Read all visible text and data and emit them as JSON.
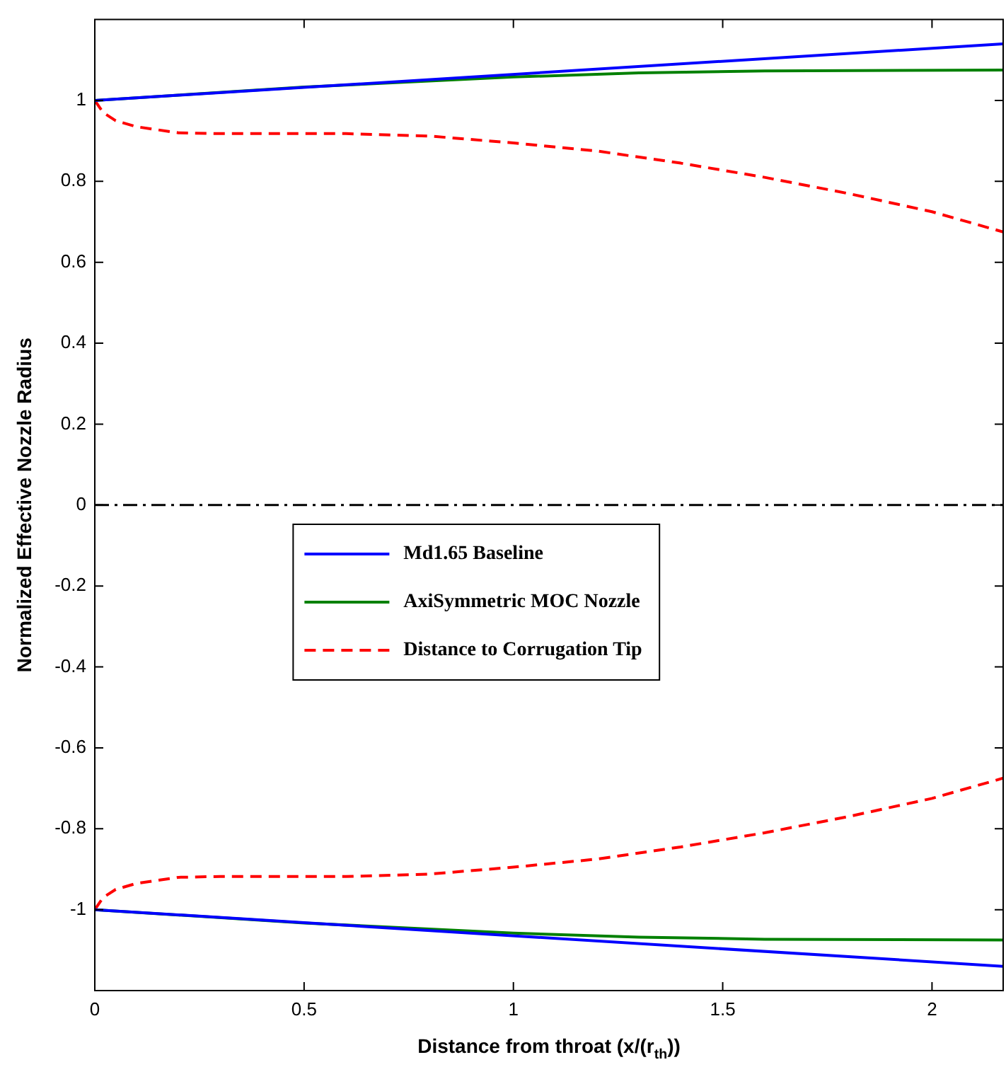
{
  "chart_data": {
    "type": "line",
    "xlabel": "Distance from throat (x/(r$_{th}$))",
    "ylabel": "Normalized Effective Nozzle Radius",
    "xlim": [
      0,
      2.17
    ],
    "xticks": [
      0,
      0.5,
      1,
      1.5,
      2
    ],
    "ylim": [
      -1.2,
      1.2
    ],
    "yticks": [
      -1,
      -0.8,
      -0.6,
      -0.4,
      -0.2,
      0,
      0.2,
      0.4,
      0.6,
      0.8,
      1
    ],
    "grid": false,
    "legend": "center",
    "marker": "none",
    "ref_lines": [
      {
        "axis": "y",
        "value": 0,
        "color": "#000000",
        "line_style": "dashdot"
      }
    ],
    "series": [
      {
        "name": "Md1.65 Baseline",
        "color": "#0000ff",
        "line_style": "solid",
        "x": [
          0,
          2.17
        ],
        "values": [
          1,
          1.14
        ]
      },
      {
        "name": "AxiSymmetric MOC Nozzle",
        "color": "#008000",
        "line_style": "solid",
        "x": [
          0,
          0.5,
          1,
          1.3,
          1.6,
          2.17
        ],
        "values": [
          1,
          1.033,
          1.058,
          1.068,
          1.073,
          1.075
        ]
      },
      {
        "name": "Distance to Corrugation Tip",
        "color": "#ff0000",
        "line_style": "dashed",
        "x": [
          0,
          0.02,
          0.05,
          0.1,
          0.2,
          0.3,
          0.5,
          0.6,
          0.8,
          1.0,
          1.2,
          1.4,
          1.6,
          1.8,
          2.0,
          2.17
        ],
        "values": [
          1,
          0.97,
          0.95,
          0.935,
          0.92,
          0.918,
          0.918,
          0.918,
          0.912,
          0.895,
          0.875,
          0.845,
          0.81,
          0.77,
          0.725,
          0.675
        ]
      },
      {
        "color": "#0000ff",
        "line_style": "solid",
        "x": [
          0,
          2.17
        ],
        "values": [
          -1,
          -1.14
        ]
      },
      {
        "color": "#008000",
        "line_style": "solid",
        "x": [
          0,
          0.5,
          1,
          1.3,
          1.6,
          2.17
        ],
        "values": [
          -1,
          -1.033,
          -1.058,
          -1.068,
          -1.073,
          -1.075
        ]
      },
      {
        "color": "#ff0000",
        "line_style": "dashed",
        "x": [
          0,
          0.02,
          0.05,
          0.1,
          0.2,
          0.3,
          0.5,
          0.6,
          0.8,
          1.0,
          1.2,
          1.4,
          1.6,
          1.8,
          2.0,
          2.17
        ],
        "values": [
          -1,
          -0.97,
          -0.95,
          -0.935,
          -0.92,
          -0.918,
          -0.918,
          -0.918,
          -0.912,
          -0.895,
          -0.875,
          -0.845,
          -0.81,
          -0.77,
          -0.725,
          -0.675
        ]
      }
    ]
  }
}
